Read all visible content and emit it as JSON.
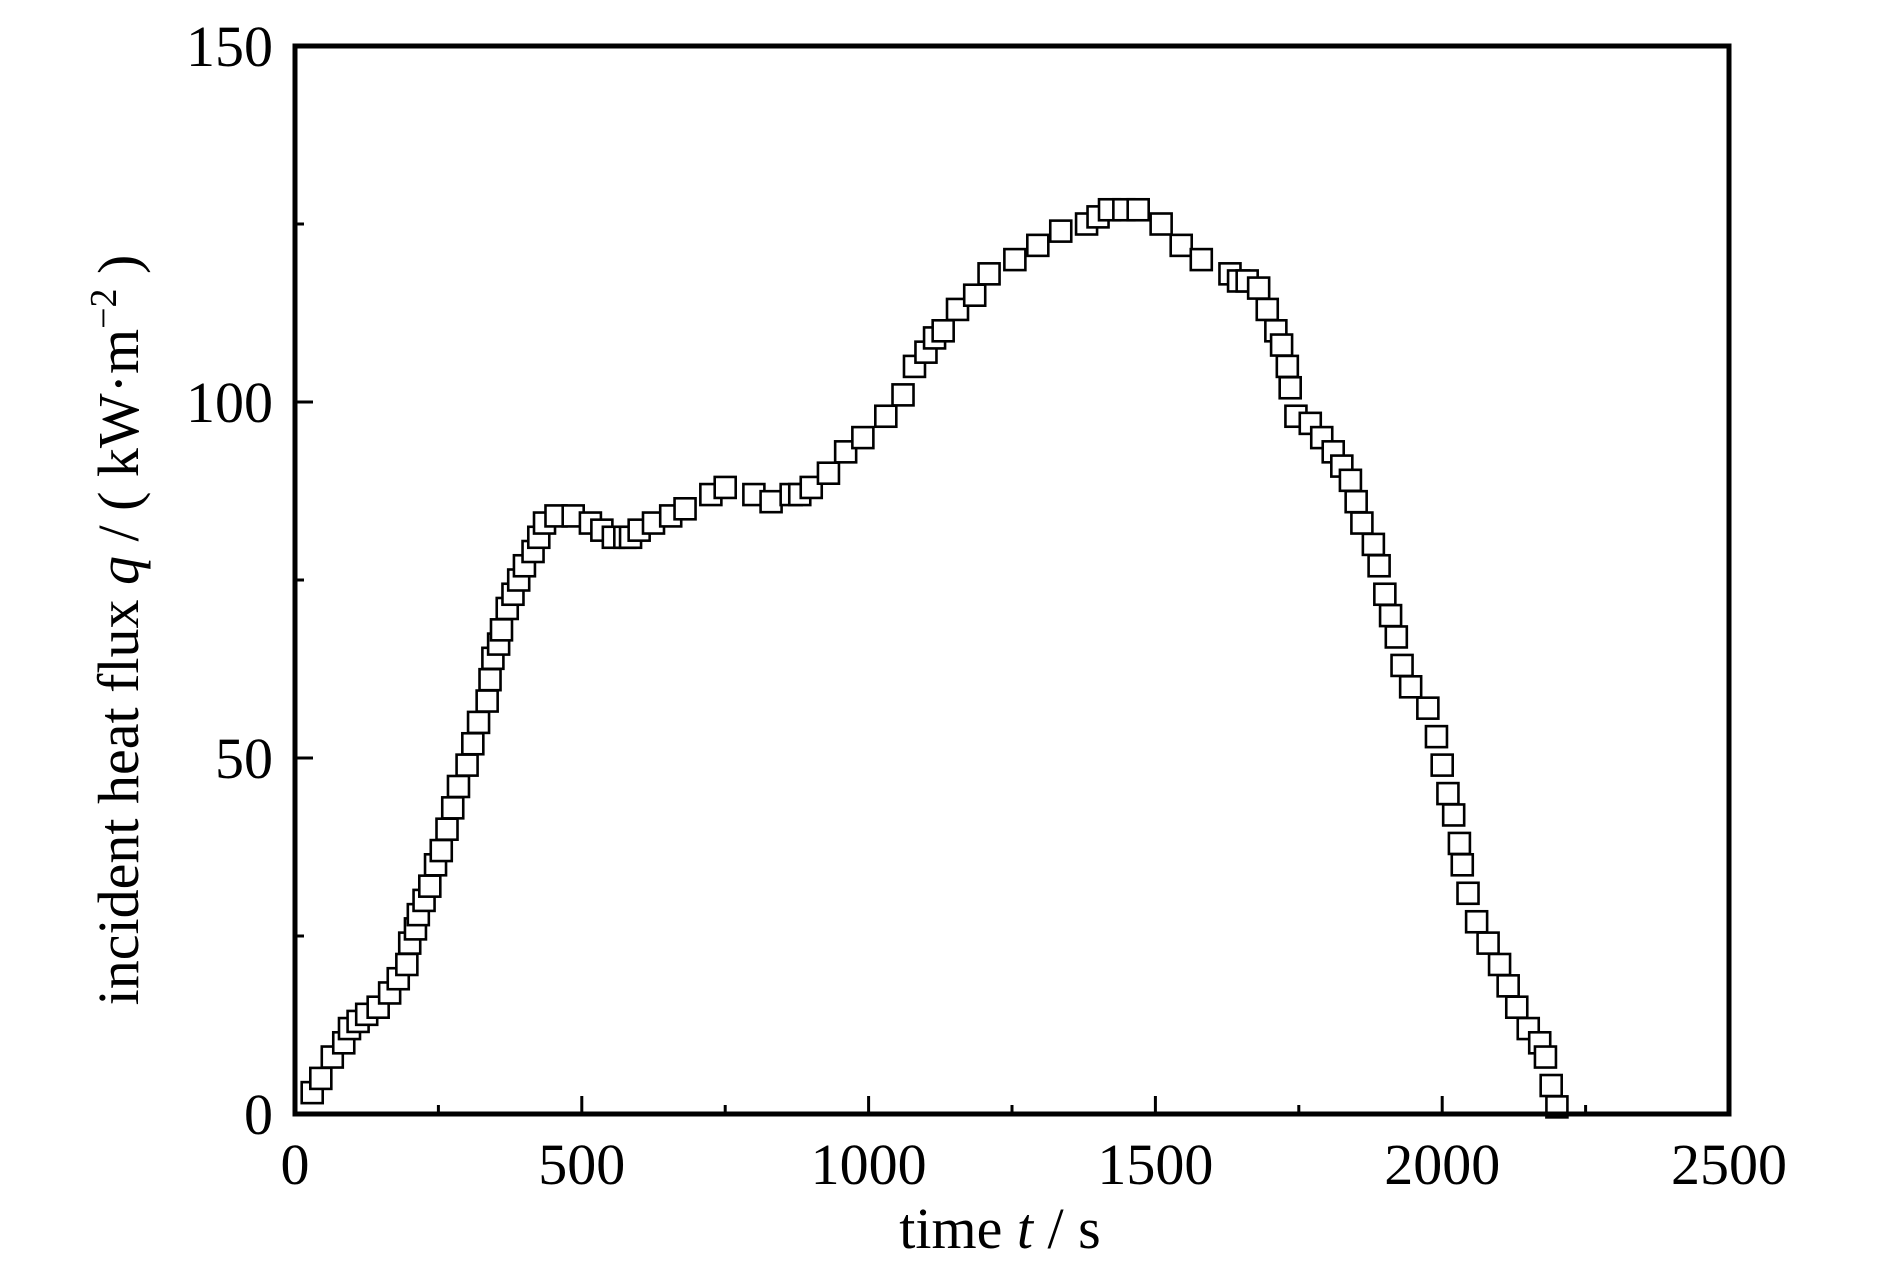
{
  "chart_data": {
    "type": "scatter",
    "xlabel": {
      "pre": "time ",
      "var": "t",
      "post": " / s"
    },
    "ylabel": {
      "pre": "incident heat flux ",
      "var": "q",
      "mid": " / ( kW·m",
      "sup": "−2",
      "post": " )"
    },
    "xlim": [
      0,
      2500
    ],
    "ylim": [
      0,
      150
    ],
    "x_ticks": [
      0,
      500,
      1000,
      1500,
      2000,
      2500
    ],
    "x_tick_labels": [
      "0",
      "500",
      "1000",
      "1500",
      "2000",
      "2500"
    ],
    "y_ticks": [
      0,
      50,
      100,
      150
    ],
    "y_tick_labels": [
      "0",
      "50",
      "100",
      "150"
    ],
    "marker": "open-square",
    "grid": false,
    "series": [
      {
        "x": [
          30,
          45,
          65,
          85,
          95,
          110,
          125,
          145,
          165,
          180,
          195,
          200,
          210,
          215,
          225,
          235,
          245,
          255,
          265,
          275,
          285,
          300,
          310,
          320,
          335,
          340,
          345,
          355,
          360,
          370,
          380,
          390,
          400,
          415,
          425,
          435,
          455,
          485,
          515,
          535,
          555,
          575,
          585,
          600,
          625,
          655,
          680,
          725,
          750,
          800,
          830,
          865,
          880,
          900,
          930,
          960,
          990,
          1030,
          1060,
          1080,
          1100,
          1115,
          1130,
          1155,
          1185,
          1210,
          1255,
          1295,
          1335,
          1380,
          1400,
          1420,
          1445,
          1470,
          1510,
          1545,
          1580,
          1630,
          1645,
          1660,
          1680,
          1695,
          1710,
          1720,
          1730,
          1735,
          1745,
          1770,
          1790,
          1810,
          1825,
          1840,
          1850,
          1860,
          1880,
          1890,
          1900,
          1910,
          1920,
          1930,
          1945,
          1975,
          1990,
          2000,
          2010,
          2020,
          2030,
          2035,
          2045,
          2060,
          2080,
          2100,
          2115,
          2130,
          2150,
          2170,
          2180,
          2190,
          2200
        ],
        "y": [
          3,
          5,
          8,
          10,
          12,
          13,
          14,
          15,
          17,
          19,
          21,
          24,
          26,
          28,
          30,
          32,
          35,
          37,
          40,
          43,
          46,
          49,
          52,
          55,
          58,
          61,
          64,
          66,
          68,
          71,
          73,
          75,
          77,
          79,
          81,
          83,
          84,
          84,
          83,
          82,
          81,
          81,
          81,
          82,
          83,
          84,
          85,
          87,
          88,
          87,
          86,
          87,
          87,
          88,
          90,
          93,
          95,
          98,
          101,
          105,
          107,
          109,
          110,
          113,
          115,
          118,
          120,
          122,
          124,
          125,
          126,
          127,
          127,
          127,
          125,
          122,
          120,
          118,
          117,
          117,
          116,
          113,
          110,
          108,
          105,
          102,
          98,
          97,
          95,
          93,
          91,
          89,
          86,
          83,
          80,
          77,
          73,
          70,
          67,
          63,
          60,
          57,
          53,
          49,
          45,
          42,
          38,
          35,
          31,
          27,
          24,
          21,
          18,
          15,
          12,
          10,
          8,
          4,
          1
        ]
      }
    ]
  }
}
